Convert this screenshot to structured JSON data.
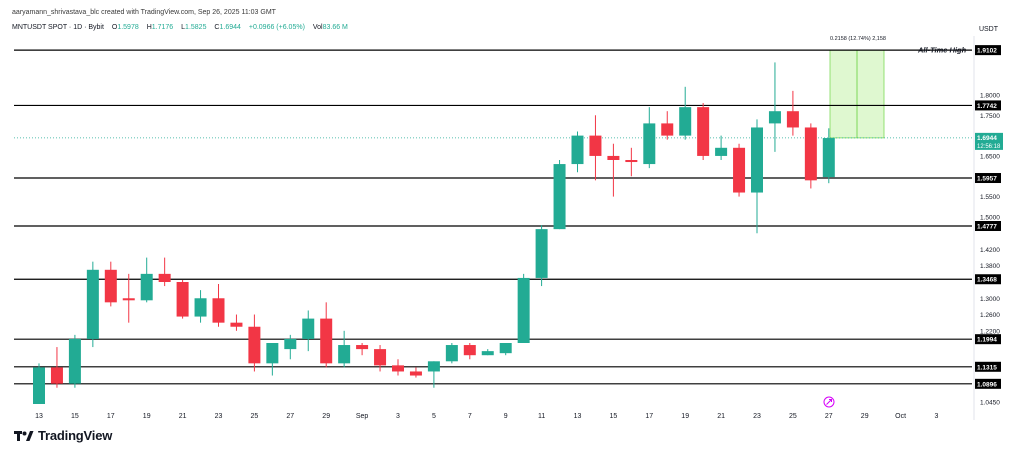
{
  "header": {
    "credit": "aaryamann_shrivastava_blc created with TradingView.com, Sep 26, 2025 11:03 GMT",
    "symbol": "MNTUSDT SPOT · 1D · Bybit",
    "open_label": "O",
    "open_value": "1.5978",
    "high_label": "H",
    "high_value": "1.7176",
    "low_label": "L",
    "low_value": "1.5825",
    "close_label": "C",
    "close_value": "1.6944",
    "change": "+0.0966 (+6.05%)",
    "volume_label": "Vol",
    "volume_value": "83.66 M"
  },
  "currency": "USDT",
  "brand": "TradingView",
  "colors": {
    "up": "#22ab94",
    "down": "#f23645",
    "line": "#000000",
    "target_fill": "#d4f5c0",
    "target_stroke": "#7ed957",
    "grid": "#ebebeb"
  },
  "chart_data": {
    "type": "candlestick",
    "symbol": "MNTUSDT",
    "timeframe": "1D",
    "ylim": [
      1.04,
      1.94
    ],
    "x_ticks": [
      "13",
      "15",
      "17",
      "19",
      "21",
      "23",
      "25",
      "27",
      "29",
      "Sep",
      "3",
      "5",
      "7",
      "9",
      "11",
      "13",
      "15",
      "17",
      "19",
      "21",
      "23",
      "25",
      "27",
      "29",
      "Oct",
      "3"
    ],
    "y_ticks": [
      "1.8000",
      "1.7500",
      "1.6500",
      "1.5500",
      "1.5000",
      "1.4600",
      "1.4200",
      "1.3800",
      "1.3000",
      "1.2600",
      "1.2200",
      "1.1800",
      "1.1050",
      "1.0750",
      "1.0450"
    ],
    "candles": [
      {
        "o": 1.04,
        "h": 1.14,
        "l": 1.04,
        "c": 1.13
      },
      {
        "o": 1.13,
        "h": 1.18,
        "l": 1.08,
        "c": 1.09
      },
      {
        "o": 1.09,
        "h": 1.21,
        "l": 1.08,
        "c": 1.2
      },
      {
        "o": 1.2,
        "h": 1.39,
        "l": 1.18,
        "c": 1.37
      },
      {
        "o": 1.37,
        "h": 1.39,
        "l": 1.28,
        "c": 1.29
      },
      {
        "o": 1.3,
        "h": 1.36,
        "l": 1.24,
        "c": 1.295
      },
      {
        "o": 1.295,
        "h": 1.4,
        "l": 1.29,
        "c": 1.36
      },
      {
        "o": 1.36,
        "h": 1.4,
        "l": 1.33,
        "c": 1.34
      },
      {
        "o": 1.34,
        "h": 1.345,
        "l": 1.25,
        "c": 1.255
      },
      {
        "o": 1.255,
        "h": 1.32,
        "l": 1.24,
        "c": 1.3
      },
      {
        "o": 1.3,
        "h": 1.335,
        "l": 1.23,
        "c": 1.24
      },
      {
        "o": 1.24,
        "h": 1.26,
        "l": 1.22,
        "c": 1.23
      },
      {
        "o": 1.23,
        "h": 1.26,
        "l": 1.12,
        "c": 1.14
      },
      {
        "o": 1.14,
        "h": 1.19,
        "l": 1.11,
        "c": 1.19
      },
      {
        "o": 1.175,
        "h": 1.21,
        "l": 1.15,
        "c": 1.2
      },
      {
        "o": 1.2,
        "h": 1.27,
        "l": 1.17,
        "c": 1.25
      },
      {
        "o": 1.25,
        "h": 1.29,
        "l": 1.13,
        "c": 1.14
      },
      {
        "o": 1.14,
        "h": 1.22,
        "l": 1.13,
        "c": 1.185
      },
      {
        "o": 1.185,
        "h": 1.19,
        "l": 1.16,
        "c": 1.175
      },
      {
        "o": 1.175,
        "h": 1.185,
        "l": 1.12,
        "c": 1.135
      },
      {
        "o": 1.135,
        "h": 1.15,
        "l": 1.11,
        "c": 1.12
      },
      {
        "o": 1.12,
        "h": 1.13,
        "l": 1.105,
        "c": 1.11
      },
      {
        "o": 1.12,
        "h": 1.145,
        "l": 1.08,
        "c": 1.145
      },
      {
        "o": 1.145,
        "h": 1.19,
        "l": 1.14,
        "c": 1.185
      },
      {
        "o": 1.185,
        "h": 1.19,
        "l": 1.15,
        "c": 1.16
      },
      {
        "o": 1.16,
        "h": 1.175,
        "l": 1.16,
        "c": 1.17
      },
      {
        "o": 1.165,
        "h": 1.19,
        "l": 1.16,
        "c": 1.19
      },
      {
        "o": 1.19,
        "h": 1.36,
        "l": 1.19,
        "c": 1.35
      },
      {
        "o": 1.35,
        "h": 1.48,
        "l": 1.33,
        "c": 1.47
      },
      {
        "o": 1.47,
        "h": 1.64,
        "l": 1.47,
        "c": 1.63
      },
      {
        "o": 1.63,
        "h": 1.71,
        "l": 1.61,
        "c": 1.7
      },
      {
        "o": 1.7,
        "h": 1.75,
        "l": 1.59,
        "c": 1.65
      },
      {
        "o": 1.65,
        "h": 1.68,
        "l": 1.55,
        "c": 1.64
      },
      {
        "o": 1.64,
        "h": 1.67,
        "l": 1.6,
        "c": 1.635
      },
      {
        "o": 1.63,
        "h": 1.77,
        "l": 1.62,
        "c": 1.73
      },
      {
        "o": 1.73,
        "h": 1.76,
        "l": 1.69,
        "c": 1.7
      },
      {
        "o": 1.7,
        "h": 1.82,
        "l": 1.69,
        "c": 1.77
      },
      {
        "o": 1.77,
        "h": 1.78,
        "l": 1.64,
        "c": 1.65
      },
      {
        "o": 1.65,
        "h": 1.7,
        "l": 1.64,
        "c": 1.67
      },
      {
        "o": 1.67,
        "h": 1.68,
        "l": 1.55,
        "c": 1.56
      },
      {
        "o": 1.56,
        "h": 1.74,
        "l": 1.46,
        "c": 1.72
      },
      {
        "o": 1.73,
        "h": 1.88,
        "l": 1.66,
        "c": 1.76
      },
      {
        "o": 1.76,
        "h": 1.81,
        "l": 1.7,
        "c": 1.72
      },
      {
        "o": 1.72,
        "h": 1.73,
        "l": 1.57,
        "c": 1.59
      },
      {
        "o": 1.598,
        "h": 1.718,
        "l": 1.583,
        "c": 1.694
      }
    ],
    "levels": [
      {
        "value": 1.9102,
        "label": "1.9102",
        "note": "All-Time High"
      },
      {
        "value": 1.7742,
        "label": "1.7742"
      },
      {
        "value": 1.5957,
        "label": "1.5957"
      },
      {
        "value": 1.4777,
        "label": "1.4777"
      },
      {
        "value": 1.3468,
        "label": "1.3468"
      },
      {
        "value": 1.1994,
        "label": "1.1994"
      },
      {
        "value": 1.1315,
        "label": "1.1315"
      },
      {
        "value": 1.0896,
        "label": "1.0896"
      }
    ],
    "current_price": {
      "value": 1.6944,
      "label": "1.6944",
      "countdown": "12:56:18"
    },
    "target_box": {
      "from": 1.6944,
      "to": 1.9102,
      "label": "0.2158 (12.74%) 2,158"
    }
  }
}
